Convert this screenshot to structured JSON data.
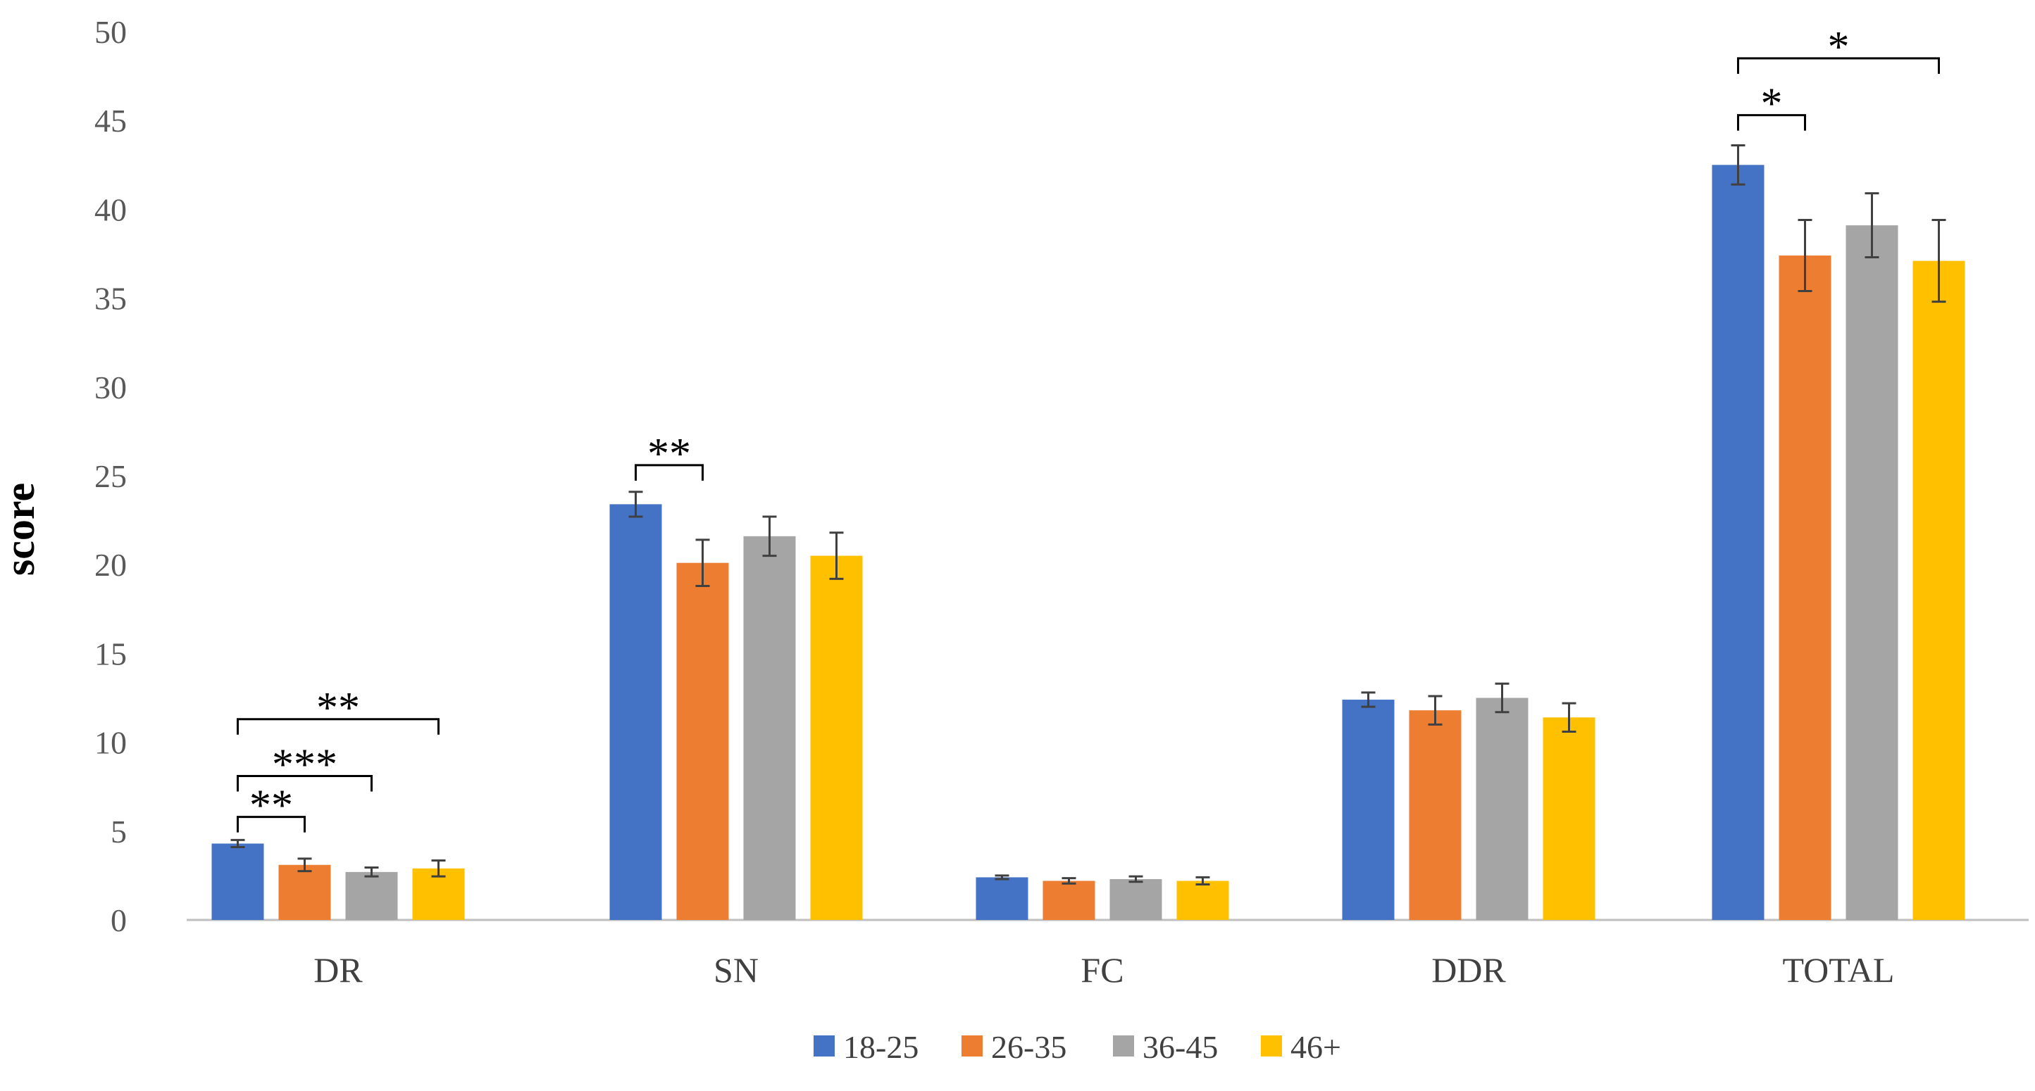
{
  "chart_data": {
    "type": "bar",
    "title": "",
    "xlabel": "",
    "ylabel": "score",
    "ylim": [
      0,
      50
    ],
    "yticks": [
      0,
      5,
      10,
      15,
      20,
      25,
      30,
      35,
      40,
      45,
      50
    ],
    "grid": false,
    "legend_position": "bottom",
    "categories": [
      "DR",
      "SN",
      "FC",
      "DDR",
      "TOTAL"
    ],
    "series": [
      {
        "name": "18-25",
        "color": "#4472C4",
        "values": [
          4.3,
          23.4,
          2.4,
          12.4,
          42.5
        ],
        "errors": [
          0.2,
          0.7,
          0.1,
          0.4,
          1.1
        ]
      },
      {
        "name": "26-35",
        "color": "#ED7D31",
        "values": [
          3.1,
          20.1,
          2.2,
          11.8,
          37.4
        ],
        "errors": [
          0.35,
          1.3,
          0.15,
          0.8,
          2.0
        ]
      },
      {
        "name": "36-45",
        "color": "#A5A5A5",
        "values": [
          2.7,
          21.6,
          2.3,
          12.5,
          39.1
        ],
        "errors": [
          0.25,
          1.1,
          0.15,
          0.8,
          1.8
        ]
      },
      {
        "name": "46+",
        "color": "#FFC000",
        "values": [
          2.9,
          20.5,
          2.2,
          11.4,
          37.1
        ],
        "errors": [
          0.45,
          1.3,
          0.2,
          0.8,
          2.3
        ]
      }
    ],
    "annotations": [
      {
        "category": 0,
        "from_series": 0,
        "to_series": 1,
        "level": 5.8,
        "label": "**"
      },
      {
        "category": 0,
        "from_series": 0,
        "to_series": 2,
        "level": 8.1,
        "label": "***"
      },
      {
        "category": 0,
        "from_series": 0,
        "to_series": 3,
        "level": 11.3,
        "label": "**"
      },
      {
        "category": 1,
        "from_series": 0,
        "to_series": 1,
        "level": 25.6,
        "label": "**"
      },
      {
        "category": 4,
        "from_series": 0,
        "to_series": 1,
        "level": 45.3,
        "label": "*"
      },
      {
        "category": 4,
        "from_series": 0,
        "to_series": 3,
        "level": 48.5,
        "label": "*"
      }
    ]
  }
}
